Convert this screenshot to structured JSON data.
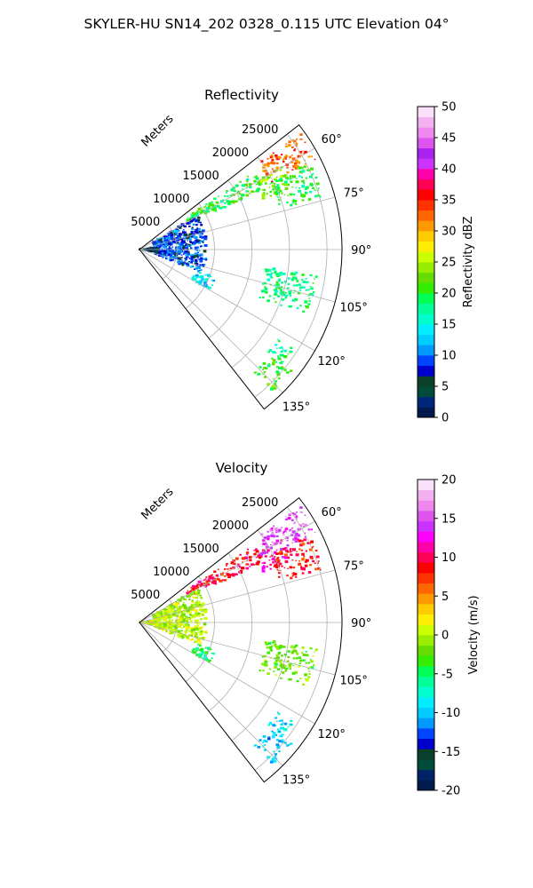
{
  "suptitle": "SKYLER-HU  SN14_202  0328_0.115 UTC Elevation 04°",
  "chart_data": [
    {
      "type": "polar-sector",
      "title": "Reflectivity",
      "range_label": "Meters",
      "r_max": 27000,
      "r_ticks": [
        5000,
        10000,
        15000,
        20000,
        25000
      ],
      "theta_range": [
        52,
        142
      ],
      "theta_ticks": [
        60,
        75,
        90,
        105,
        120,
        135
      ],
      "grid": true,
      "colorbar": {
        "label": "Reflectivity dBZ",
        "min": 0,
        "max": 50,
        "ticks": [
          0,
          5,
          10,
          15,
          20,
          25,
          30,
          35,
          40,
          45,
          50
        ],
        "stops": [
          "#001a4d",
          "#00287a",
          "#004c3a",
          "#0a3f2a",
          "#0000cc",
          "#0044ff",
          "#0099ff",
          "#00ccff",
          "#00eeff",
          "#00ffcc",
          "#00ff99",
          "#00ff55",
          "#33ee00",
          "#66dd00",
          "#99ee00",
          "#ccff00",
          "#ffee00",
          "#ffcc00",
          "#ff9900",
          "#ff6600",
          "#ff3300",
          "#ff0000",
          "#ff0055",
          "#ff00aa",
          "#cc33ff",
          "#aa22ee",
          "#dd55ee",
          "#ee88ee",
          "#f3b0f0",
          "#fbe0fa"
        ]
      },
      "echoes": [
        {
          "name": "north-band-strong",
          "theta": [
            54,
            63
          ],
          "r": [
            19500,
            26500
          ],
          "value": 33
        },
        {
          "name": "north-band-mid",
          "theta": [
            60,
            68
          ],
          "r": [
            17500,
            22500
          ],
          "value": 23
        },
        {
          "name": "north-band-east",
          "theta": [
            63,
            74
          ],
          "r": [
            19500,
            25500
          ],
          "value": 19
        },
        {
          "name": "northwest-arc",
          "theta": [
            56,
            64
          ],
          "r": [
            7500,
            18500
          ],
          "value": 20
        },
        {
          "name": "near-radar-ring",
          "theta": [
            60,
            110
          ],
          "r": [
            2000,
            9000
          ],
          "value": 9
        },
        {
          "name": "origin-clutter",
          "theta": [
            85,
            100
          ],
          "r": [
            0,
            2500
          ],
          "value": 4
        },
        {
          "name": "southwest-blob",
          "theta": [
            110,
            120
          ],
          "r": [
            8000,
            11000
          ],
          "value": 14
        },
        {
          "name": "far-south-cell-a",
          "theta": [
            123,
            129
          ],
          "r": [
            22000,
            24500
          ],
          "value": 18
        },
        {
          "name": "far-south-cell-b",
          "theta": [
            128,
            137
          ],
          "r": [
            22500,
            26000
          ],
          "value": 21
        },
        {
          "name": "scatter-east",
          "theta": [
            98,
            112
          ],
          "r": [
            17000,
            24000
          ],
          "value": 18
        }
      ]
    },
    {
      "type": "polar-sector",
      "title": "Velocity",
      "range_label": "Meters",
      "r_max": 27000,
      "r_ticks": [
        5000,
        10000,
        15000,
        20000,
        25000
      ],
      "theta_range": [
        52,
        142
      ],
      "theta_ticks": [
        60,
        75,
        90,
        105,
        120,
        135
      ],
      "grid": true,
      "colorbar": {
        "label": "Velocity (m/s)",
        "min": -20,
        "max": 20,
        "ticks": [
          -20,
          -15,
          -10,
          -5,
          0,
          5,
          10,
          15,
          20
        ],
        "stops": [
          "#001a4d",
          "#002266",
          "#004c3a",
          "#0a3f2a",
          "#0000cc",
          "#0044ff",
          "#0099ff",
          "#00ccff",
          "#00eeff",
          "#00ffcc",
          "#00ff99",
          "#00ff55",
          "#33ee00",
          "#66dd00",
          "#99ee00",
          "#ccff00",
          "#ffee00",
          "#ffcc00",
          "#ff9900",
          "#ff6600",
          "#ff3300",
          "#ff0000",
          "#ff0055",
          "#ff00aa",
          "#ff00ff",
          "#cc33ff",
          "#dd55ee",
          "#ee88ee",
          "#f3b0f0",
          "#fbe0fa"
        ]
      },
      "echoes": [
        {
          "name": "north-band-strong",
          "theta": [
            54,
            63
          ],
          "r": [
            19500,
            26500
          ],
          "value": 15
        },
        {
          "name": "north-band-mid",
          "theta": [
            60,
            68
          ],
          "r": [
            17500,
            22500
          ],
          "value": 12
        },
        {
          "name": "north-band-east",
          "theta": [
            63,
            74
          ],
          "r": [
            19500,
            25500
          ],
          "value": 8
        },
        {
          "name": "northwest-arc",
          "theta": [
            56,
            64
          ],
          "r": [
            7500,
            18500
          ],
          "value": 9
        },
        {
          "name": "near-radar-ring",
          "theta": [
            60,
            110
          ],
          "r": [
            2000,
            9000
          ],
          "value": 0
        },
        {
          "name": "origin-clutter",
          "theta": [
            85,
            100
          ],
          "r": [
            0,
            2500
          ],
          "value": 1
        },
        {
          "name": "southwest-blob",
          "theta": [
            110,
            120
          ],
          "r": [
            8000,
            11000
          ],
          "value": -5
        },
        {
          "name": "far-south-cell-a",
          "theta": [
            123,
            129
          ],
          "r": [
            22000,
            24500
          ],
          "value": -9
        },
        {
          "name": "far-south-cell-b",
          "theta": [
            128,
            137
          ],
          "r": [
            22500,
            26000
          ],
          "value": -10
        },
        {
          "name": "scatter-east",
          "theta": [
            98,
            112
          ],
          "r": [
            17000,
            24000
          ],
          "value": -2
        }
      ]
    }
  ]
}
